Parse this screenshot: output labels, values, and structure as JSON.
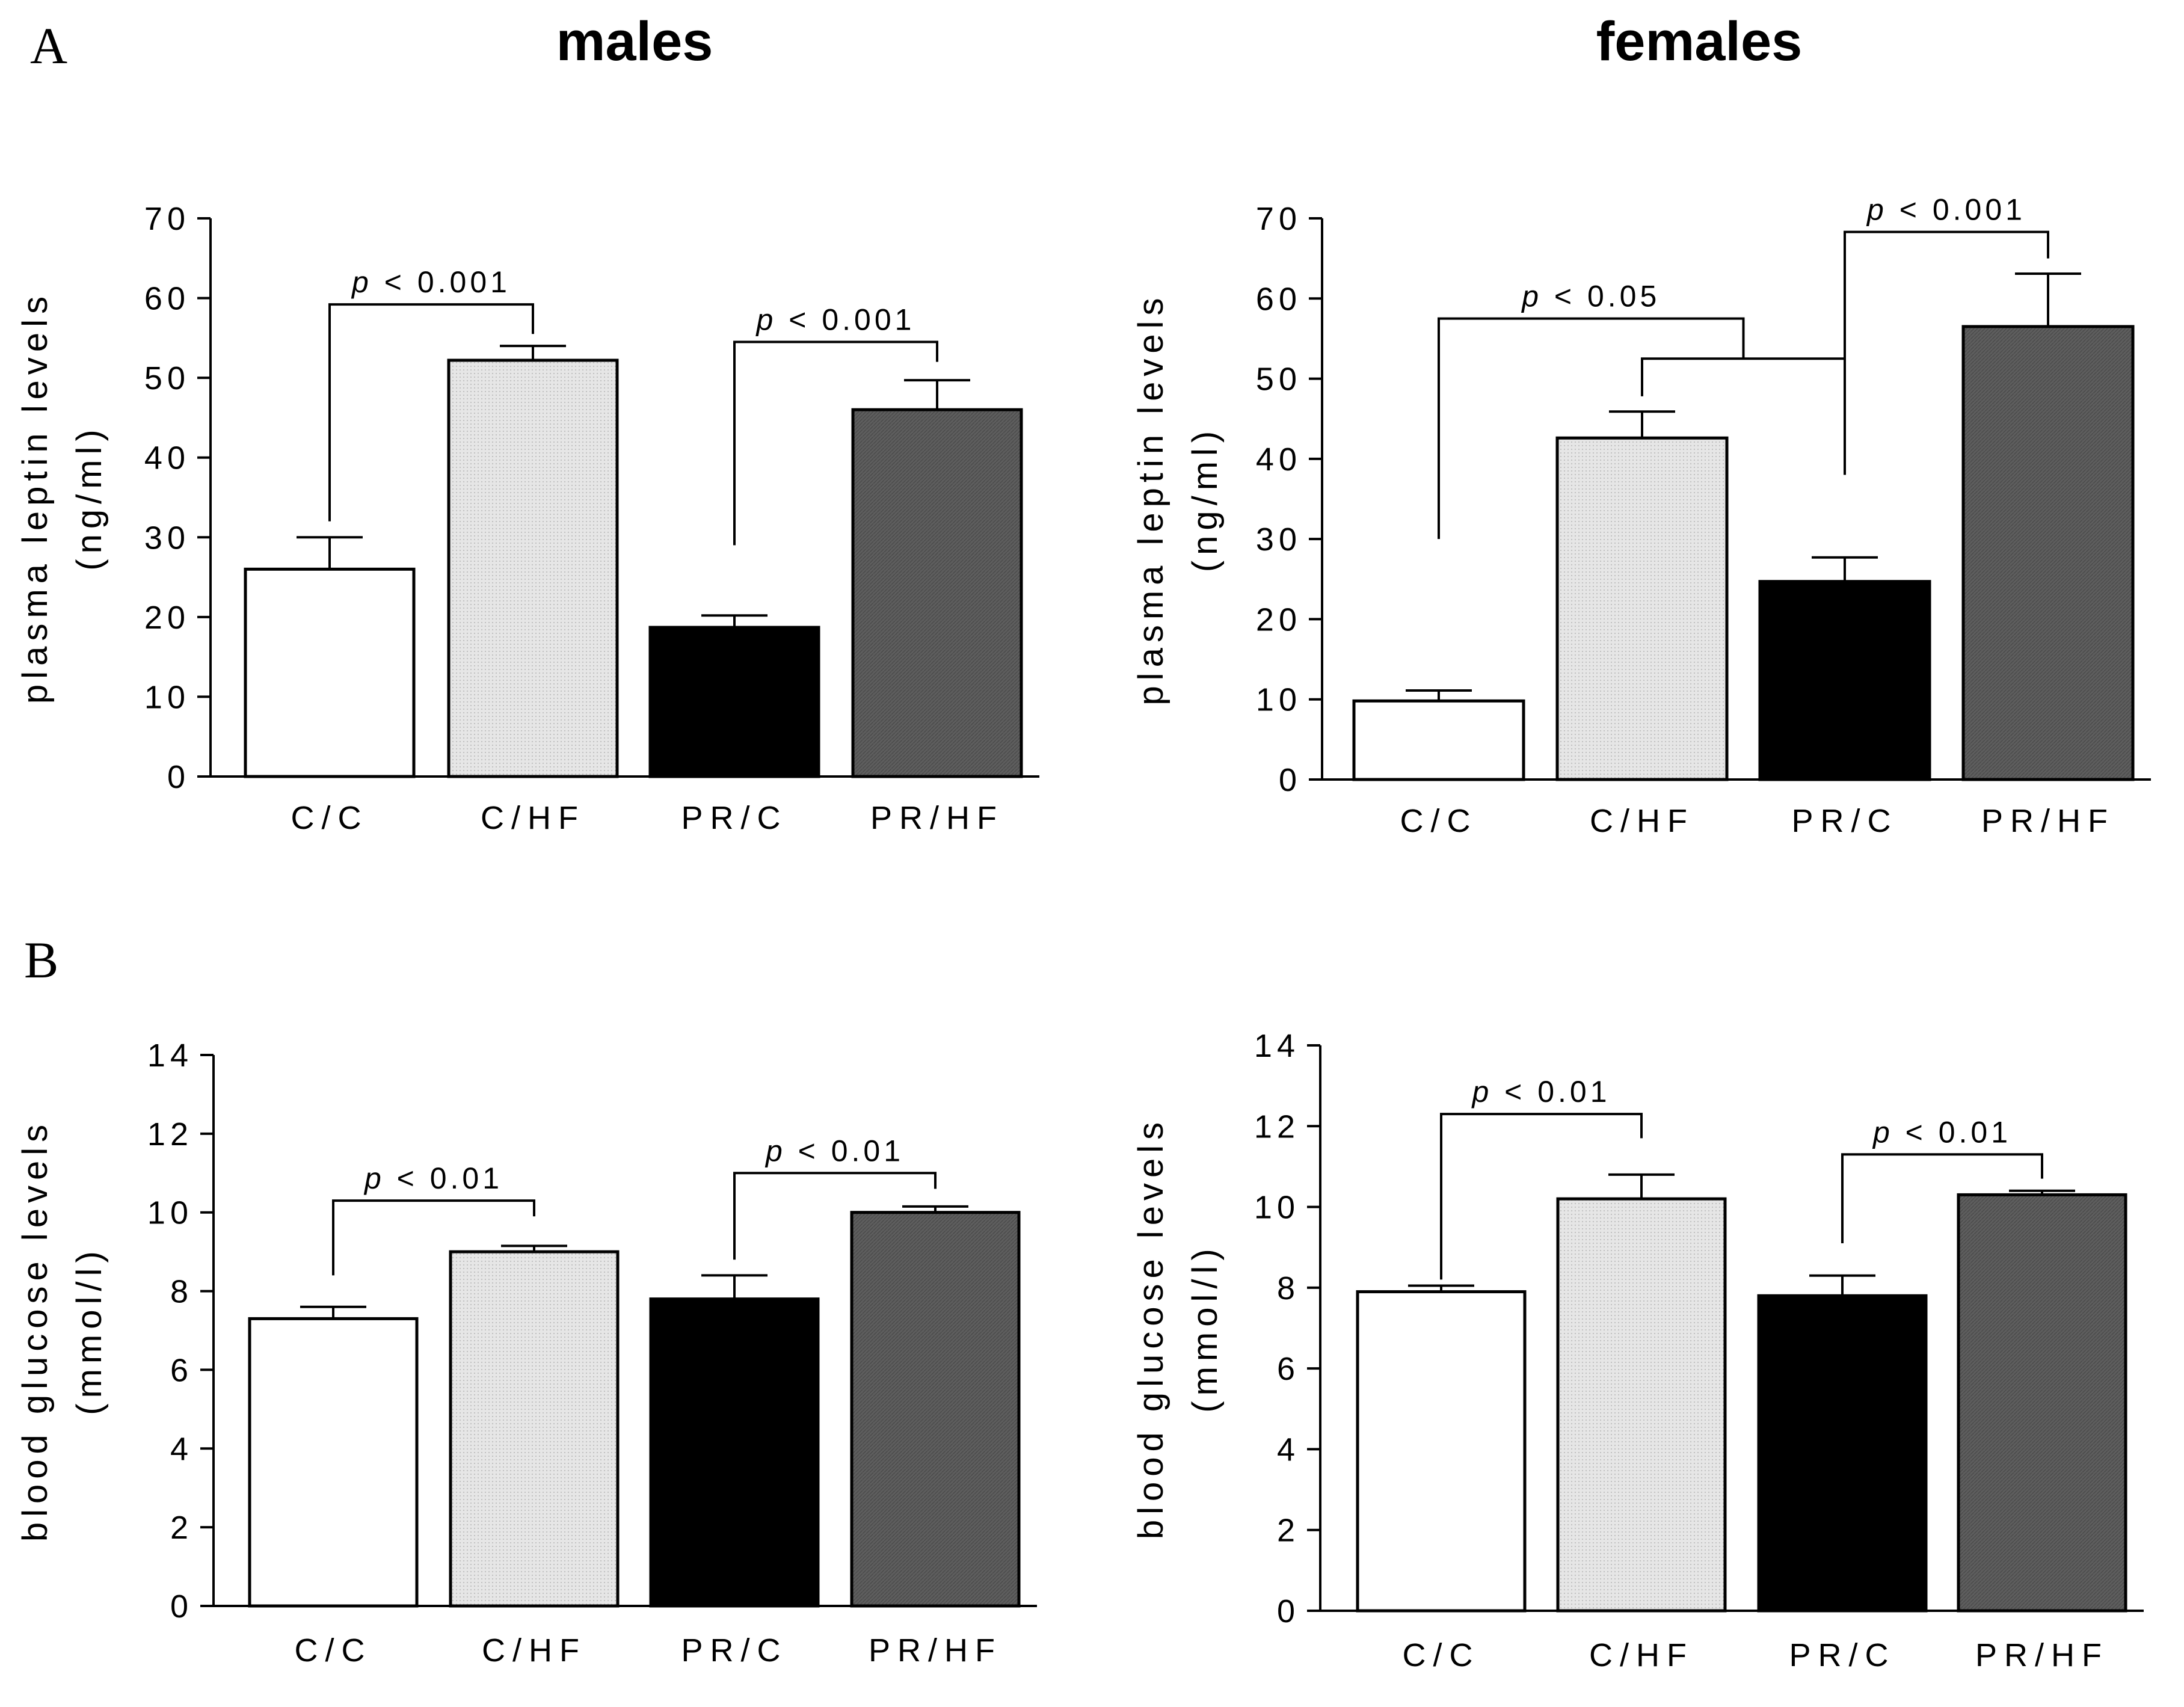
{
  "figure": {
    "panel_letters": [
      "A",
      "B"
    ],
    "column_titles": [
      "males",
      "females"
    ]
  },
  "colors": {
    "C/C": "#ffffff",
    "C/HF": "#e2e2e2",
    "PR/C": "#000000",
    "PR/HF": "#5a5a5a"
  },
  "chart_data": [
    {
      "type": "bar",
      "panel": "A",
      "title": "males",
      "ylabel": "plasma leptin levels",
      "yunit": "(ng/ml)",
      "categories": [
        "C/C",
        "C/HF",
        "PR/C",
        "PR/HF"
      ],
      "values": [
        26,
        52.2,
        18.7,
        46
      ],
      "errors": [
        4,
        1.8,
        1.5,
        3.7
      ],
      "ylim": [
        0,
        70
      ],
      "yticks": [
        0,
        10,
        20,
        30,
        40,
        50,
        60,
        70
      ],
      "significance": [
        {
          "text": "< 0.001",
          "from": 0,
          "to": 1,
          "level": 59.2,
          "drop_from": 32,
          "drop_to": 55.5
        },
        {
          "text": "< 0.001",
          "from": 2,
          "to": 3,
          "level": 54.5,
          "drop_from": 29,
          "drop_to": 52
        }
      ]
    },
    {
      "type": "bar",
      "panel": "A",
      "title": "females",
      "ylabel": "plasma leptin levels",
      "yunit": "(ng/ml)",
      "categories": [
        "C/C",
        "C/HF",
        "PR/C",
        "PR/HF"
      ],
      "values": [
        9.8,
        42.6,
        24.7,
        56.5
      ],
      "errors": [
        1.3,
        3.3,
        3,
        6.6
      ],
      "ylim": [
        0,
        70
      ],
      "yticks": [
        0,
        10,
        20,
        30,
        40,
        50,
        60,
        70
      ],
      "significance": [
        {
          "text": "< 0.001",
          "from": 2,
          "to": 3,
          "level": 68.3,
          "drop_from": 38,
          "drop_to": 65
        },
        {
          "text": "< 0.05",
          "from": 0,
          "to": 1.5,
          "level": 57.5,
          "drop_from": 30,
          "drop_to": 52.5,
          "nested": {
            "from": 1,
            "to": 2,
            "level": 52.5,
            "drop_from": 47.8,
            "drop_to": 38
          }
        }
      ]
    },
    {
      "type": "bar",
      "panel": "B",
      "title": "males",
      "ylabel": "blood glucose levels",
      "yunit": "(mmol/l)",
      "categories": [
        "C/C",
        "C/HF",
        "PR/C",
        "PR/HF"
      ],
      "values": [
        7.3,
        9,
        7.8,
        10
      ],
      "errors": [
        0.3,
        0.15,
        0.6,
        0.15
      ],
      "ylim": [
        0,
        14
      ],
      "yticks": [
        0,
        2,
        4,
        6,
        8,
        10,
        12,
        14
      ],
      "significance": [
        {
          "text": "< 0.01",
          "from": 0,
          "to": 1,
          "level": 10.3,
          "drop_from": 8.4,
          "drop_to": 9.9
        },
        {
          "text": "< 0.01",
          "from": 2,
          "to": 3,
          "level": 11,
          "drop_from": 8.8,
          "drop_to": 10.6
        }
      ]
    },
    {
      "type": "bar",
      "panel": "B",
      "title": "females",
      "ylabel": "blood glucose levels",
      "yunit": "(mmol/l)",
      "categories": [
        "C/C",
        "C/HF",
        "PR/C",
        "PR/HF"
      ],
      "values": [
        7.9,
        10.2,
        7.8,
        10.3
      ],
      "errors": [
        0.15,
        0.6,
        0.5,
        0.1
      ],
      "ylim": [
        0,
        14
      ],
      "yticks": [
        0,
        2,
        4,
        6,
        8,
        10,
        12,
        14
      ],
      "significance": [
        {
          "text": "< 0.01",
          "from": 0,
          "to": 1,
          "level": 12.3,
          "drop_from": 8.2,
          "drop_to": 11.7
        },
        {
          "text": "< 0.01",
          "from": 2,
          "to": 3,
          "level": 11.3,
          "drop_from": 9.1,
          "drop_to": 10.7
        }
      ]
    }
  ]
}
